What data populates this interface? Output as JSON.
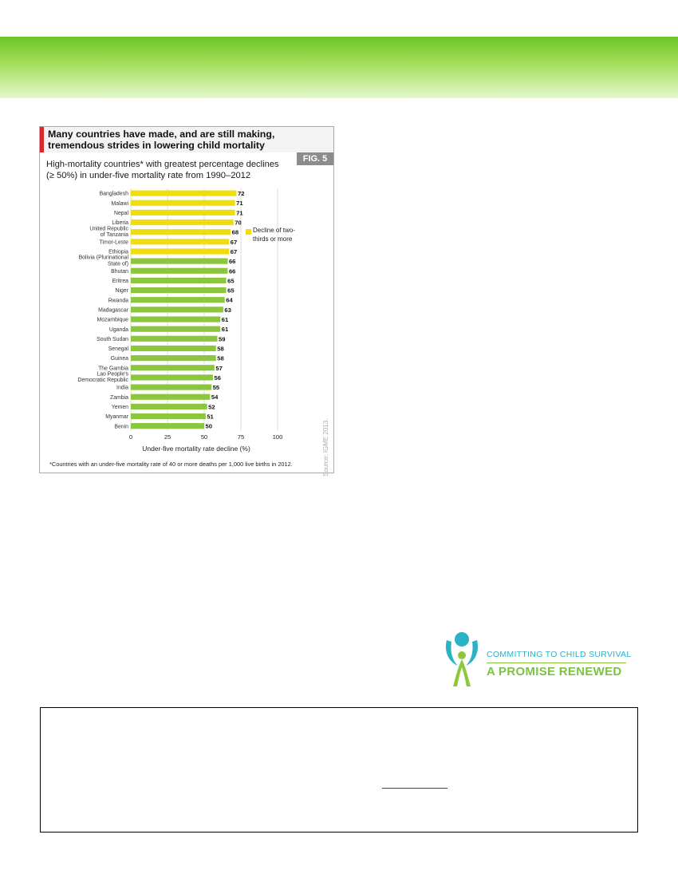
{
  "figure": {
    "title": "Many countries have made, and are still making, tremendous strides in lowering child mortality",
    "badge": "FIG. 5",
    "subtitle": "High-mortality countries* with greatest percentage declines (≥ 50%) in under-five mortality rate from 1990–2012",
    "legend_label": "Decline of two-thirds or more",
    "source": "Source: IGME 2013.",
    "footnote": "*Countries with an under-five mortality rate of 40 or more deaths per 1,000 live births in 2012."
  },
  "chart_data": {
    "type": "bar",
    "orientation": "horizontal",
    "categories": [
      "Bangladesh",
      "Malawi",
      "Nepal",
      "Liberia",
      "United Republic of Tanzania",
      "Timor-Leste",
      "Ethiopia",
      "Bolivia (Plurinational State of)",
      "Bhutan",
      "Eritrea",
      "Niger",
      "Rwanda",
      "Madagascar",
      "Mozambique",
      "Uganda",
      "South Sudan",
      "Senegal",
      "Guinea",
      "The Gambia",
      "Lao People's Democratic Republic",
      "India",
      "Zambia",
      "Yemen",
      "Myanmar",
      "Benin"
    ],
    "category_lines": [
      [
        "Bangladesh"
      ],
      [
        "Malawi"
      ],
      [
        "Nepal"
      ],
      [
        "Liberia"
      ],
      [
        "United Republic",
        "of Tanzania"
      ],
      [
        "Timor-Leste"
      ],
      [
        "Ethiopia"
      ],
      [
        "Bolivia (Plurinational",
        "State of)"
      ],
      [
        "Bhutan"
      ],
      [
        "Eritrea"
      ],
      [
        "Niger"
      ],
      [
        "Rwanda"
      ],
      [
        "Madagascar"
      ],
      [
        "Mozambique"
      ],
      [
        "Uganda"
      ],
      [
        "South Sudan"
      ],
      [
        "Senegal"
      ],
      [
        "Guinea"
      ],
      [
        "The Gambia"
      ],
      [
        "Lao People's",
        "Democratic Republic"
      ],
      [
        "India"
      ],
      [
        "Zambia"
      ],
      [
        "Yemen"
      ],
      [
        "Myanmar"
      ],
      [
        "Benin"
      ]
    ],
    "values": [
      72,
      71,
      71,
      70,
      68,
      67,
      67,
      66,
      66,
      65,
      65,
      64,
      63,
      61,
      61,
      59,
      58,
      58,
      57,
      56,
      55,
      54,
      52,
      51,
      50
    ],
    "highlight_threshold": 67,
    "highlight_color": "#f0dd0f",
    "base_color": "#8cc63f",
    "xlabel": "Under-five mortality rate  decline (%)",
    "ylabel": "",
    "xlim": [
      0,
      100
    ],
    "xticks": [
      0,
      25,
      50,
      75,
      100
    ],
    "grid": true
  },
  "logo": {
    "line1": "COMMITTING TO CHILD SURVIVAL",
    "line2": "A PROMISE RENEWED"
  }
}
